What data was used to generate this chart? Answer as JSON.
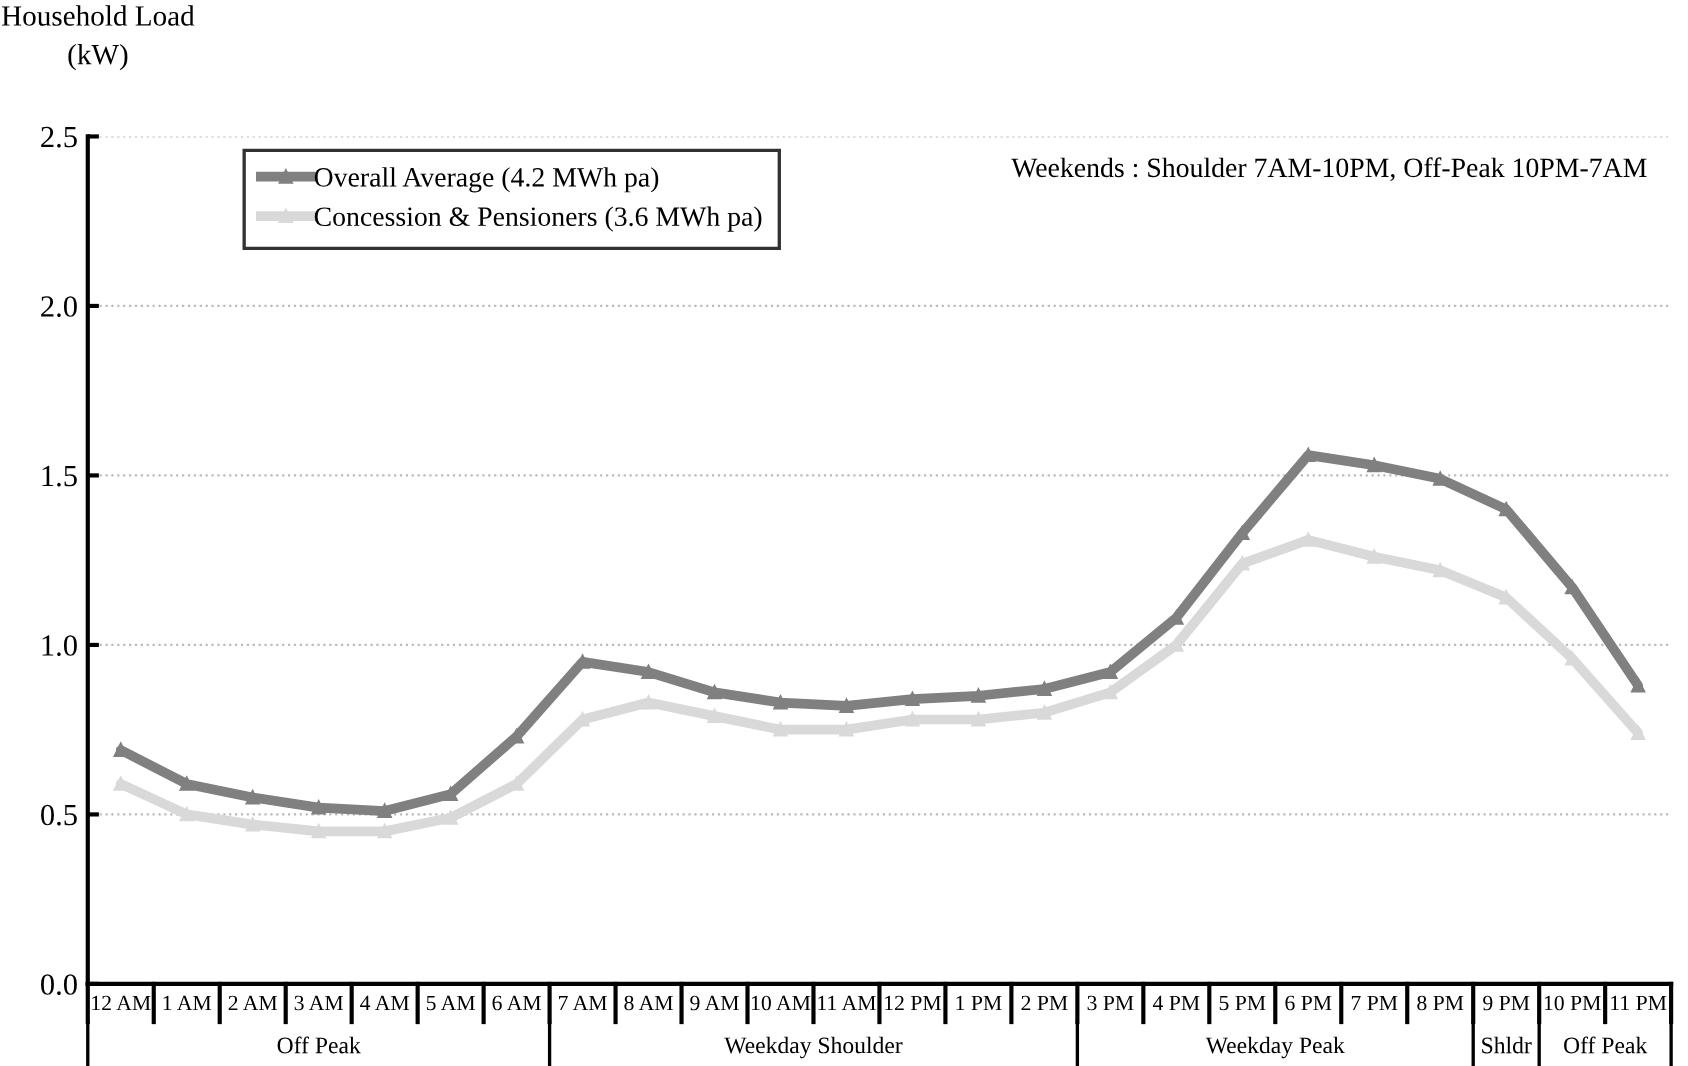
{
  "chart_data": {
    "type": "line",
    "ylabel": "Household Load\n(kW)",
    "categories": [
      "12 AM",
      "1 AM",
      "2 AM",
      "3 AM",
      "4 AM",
      "5 AM",
      "6 AM",
      "7 AM",
      "8 AM",
      "9 AM",
      "10 AM",
      "11 AM",
      "12 PM",
      "1 PM",
      "2 PM",
      "3 PM",
      "4 PM",
      "5 PM",
      "6 PM",
      "7 PM",
      "8 PM",
      "9 PM",
      "10 PM",
      "11 PM"
    ],
    "series": [
      {
        "name": "Overall Average (4.2 MWh pa)",
        "color": "#808080",
        "values": [
          0.69,
          0.59,
          0.55,
          0.52,
          0.51,
          0.56,
          0.73,
          0.95,
          0.92,
          0.86,
          0.83,
          0.82,
          0.84,
          0.85,
          0.87,
          0.92,
          1.08,
          1.33,
          1.56,
          1.53,
          1.49,
          1.4,
          1.17,
          0.88
        ]
      },
      {
        "name": "Concession & Pensioners (3.6 MWh pa)",
        "color": "#d9d9d9",
        "values": [
          0.59,
          0.5,
          0.47,
          0.45,
          0.45,
          0.49,
          0.59,
          0.78,
          0.83,
          0.79,
          0.75,
          0.75,
          0.78,
          0.78,
          0.8,
          0.86,
          1.0,
          1.24,
          1.31,
          1.26,
          1.22,
          1.14,
          0.96,
          0.74
        ]
      }
    ],
    "ylim": [
      0,
      2.5
    ],
    "yticks": [
      {
        "value": 0,
        "label": "0.0"
      },
      {
        "value": 0.5,
        "label": "0.5"
      },
      {
        "value": 1,
        "label": "1.0"
      },
      {
        "value": 1.5,
        "label": "1.5"
      },
      {
        "value": 2,
        "label": "2.0"
      },
      {
        "value": 2.5,
        "label": "2.5"
      }
    ],
    "grid": "y",
    "legend": "top left",
    "marker": "triangle",
    "line_style": "solid",
    "annotations": [
      "Weekends : Shoulder 7AM-10PM, Off-Peak 10PM-7AM",
      "Off Peak",
      "Weekday Shoulder",
      "Weekday Peak",
      "Shldr",
      "Off Peak"
    ]
  }
}
